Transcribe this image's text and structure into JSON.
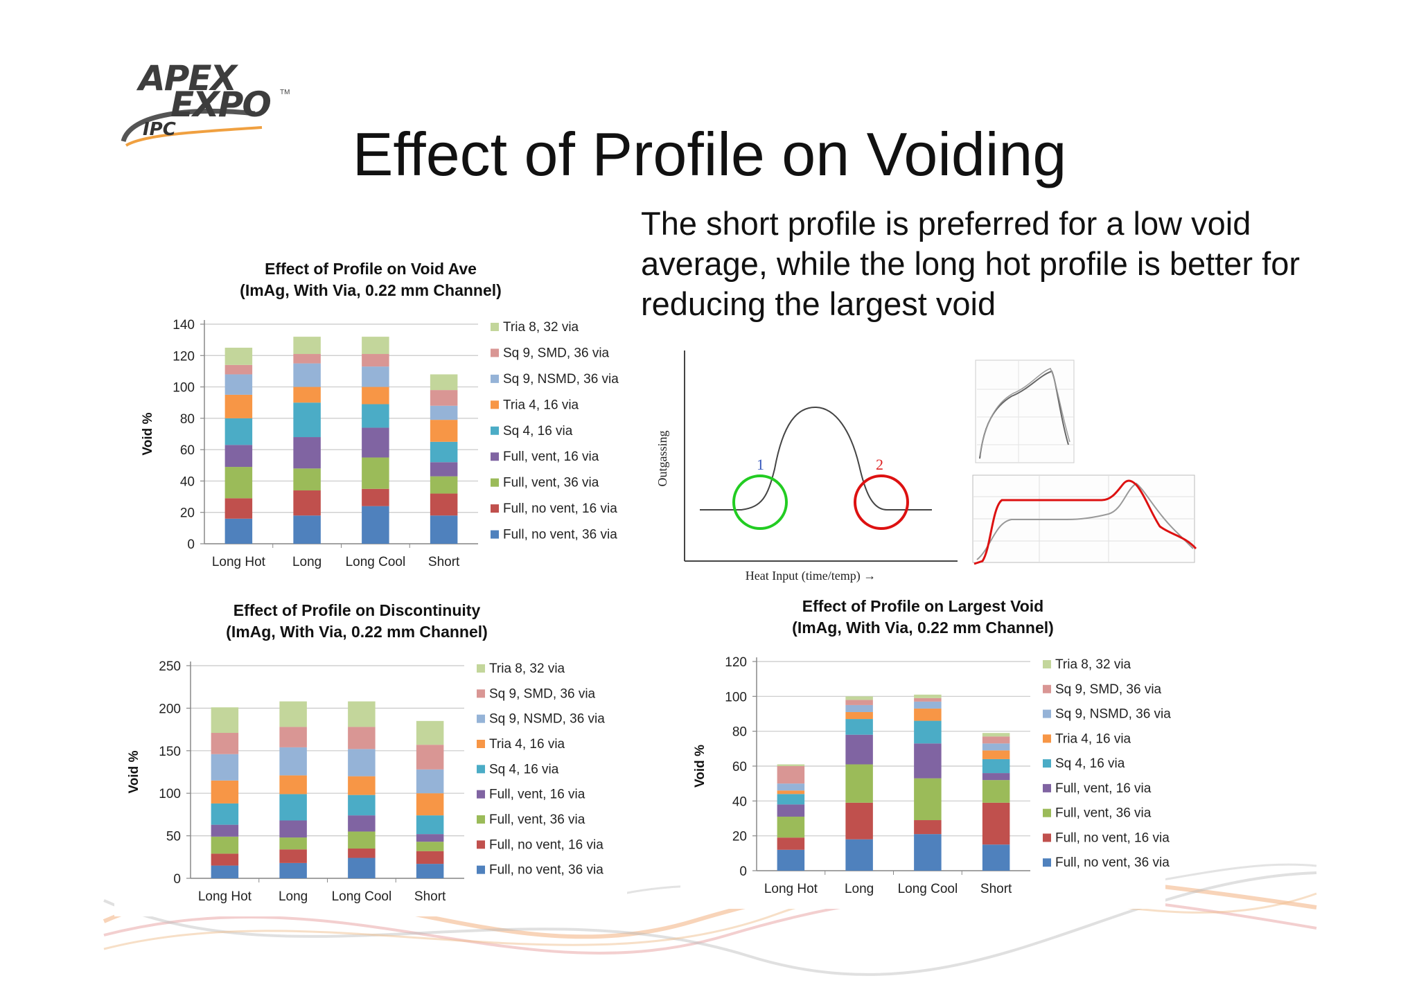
{
  "slide": {
    "title": "Effect of Profile on Voiding",
    "summary": "The short profile is preferred for a low void average, while the long hot profile is better for reducing the largest void"
  },
  "logo": {
    "line1": "APEX",
    "line2": "EXPO",
    "line3": "IPC",
    "tm": "TM"
  },
  "profile_diagram": {
    "ylabel": "Outgassing",
    "xlabel": "Heat Input (time/temp) →",
    "marker1": "1",
    "marker2": "2",
    "marker1_color": "#22cc22",
    "marker2_color": "#dd1111",
    "profile_color": "#dd1111"
  },
  "series_colors": [
    "#4F81BD",
    "#C0504D",
    "#9BBB59",
    "#8064A2",
    "#4BACC6",
    "#F79646",
    "#95B3D7",
    "#D99694",
    "#C3D69B"
  ],
  "chart_data": [
    {
      "type": "bar",
      "stacked": true,
      "title": "Effect of Profile on Void Ave",
      "subtitle": "(ImAg, With Via, 0.22 mm Channel)",
      "xlabel": "",
      "ylabel": "Void %",
      "ylim": [
        0,
        140
      ],
      "yticks": [
        0,
        20,
        40,
        60,
        80,
        100,
        120,
        140
      ],
      "categories": [
        "Long Hot",
        "Long",
        "Long Cool",
        "Short"
      ],
      "grid": true,
      "legend": "right",
      "series": [
        {
          "name": "Full, no vent, 36 via",
          "values": [
            16,
            18,
            24,
            18
          ]
        },
        {
          "name": "Full, no vent, 16 via",
          "values": [
            13,
            16,
            11,
            14
          ]
        },
        {
          "name": "Full, vent, 36 via",
          "values": [
            20,
            14,
            20,
            11
          ]
        },
        {
          "name": "Full, vent, 16 via",
          "values": [
            14,
            20,
            19,
            9
          ]
        },
        {
          "name": "Sq 4, 16 via",
          "values": [
            17,
            22,
            15,
            13
          ]
        },
        {
          "name": "Tria 4, 16 via",
          "values": [
            15,
            10,
            11,
            14
          ]
        },
        {
          "name": "Sq 9, NSMD, 36 via",
          "values": [
            13,
            15,
            13,
            9
          ]
        },
        {
          "name": "Sq 9, SMD, 36 via",
          "values": [
            6,
            6,
            8,
            10
          ]
        },
        {
          "name": "Tria 8, 32 via",
          "values": [
            11,
            11,
            11,
            10
          ]
        }
      ]
    },
    {
      "type": "bar",
      "stacked": true,
      "title": "Effect of Profile on Discontinuity",
      "subtitle": "(ImAg, With Via, 0.22 mm Channel)",
      "xlabel": "",
      "ylabel": "Void %",
      "ylim": [
        0,
        250
      ],
      "yticks": [
        0,
        50,
        100,
        150,
        200,
        250
      ],
      "categories": [
        "Long Hot",
        "Long",
        "Long Cool",
        "Short"
      ],
      "grid": true,
      "legend": "right",
      "series": [
        {
          "name": "Full, no vent, 36 via",
          "values": [
            15,
            18,
            24,
            17
          ]
        },
        {
          "name": "Full, no vent, 16 via",
          "values": [
            14,
            16,
            11,
            15
          ]
        },
        {
          "name": "Full, vent, 36 via",
          "values": [
            20,
            14,
            20,
            11
          ]
        },
        {
          "name": "Full, vent, 16 via",
          "values": [
            14,
            20,
            19,
            9
          ]
        },
        {
          "name": "Sq 4, 16 via",
          "values": [
            25,
            31,
            24,
            22
          ]
        },
        {
          "name": "Tria 4, 16 via",
          "values": [
            27,
            22,
            22,
            26
          ]
        },
        {
          "name": "Sq 9, NSMD, 36 via",
          "values": [
            31,
            33,
            32,
            28
          ]
        },
        {
          "name": "Sq 9, SMD, 36 via",
          "values": [
            25,
            24,
            26,
            29
          ]
        },
        {
          "name": "Tria 8, 32 via",
          "values": [
            30,
            30,
            30,
            28
          ]
        }
      ]
    },
    {
      "type": "bar",
      "stacked": true,
      "title": "Effect of Profile on Largest Void",
      "subtitle": "(ImAg, With Via, 0.22 mm Channel)",
      "xlabel": "",
      "ylabel": "Void %",
      "ylim": [
        0,
        120
      ],
      "yticks": [
        0,
        20,
        40,
        60,
        80,
        100,
        120
      ],
      "categories": [
        "Long Hot",
        "Long",
        "Long Cool",
        "Short"
      ],
      "grid": true,
      "legend": "right",
      "series": [
        {
          "name": "Full, no vent, 36 via",
          "values": [
            12,
            18,
            21,
            15
          ]
        },
        {
          "name": "Full, no vent, 16 via",
          "values": [
            7,
            21,
            8,
            24
          ]
        },
        {
          "name": "Full, vent, 36 via",
          "values": [
            12,
            22,
            24,
            13
          ]
        },
        {
          "name": "Full, vent, 16 via",
          "values": [
            7,
            17,
            20,
            4
          ]
        },
        {
          "name": "Sq 4, 16 via",
          "values": [
            6,
            9,
            13,
            8
          ]
        },
        {
          "name": "Tria 4, 16 via",
          "values": [
            2,
            4,
            7,
            5
          ]
        },
        {
          "name": "Sq 9, NSMD, 36 via",
          "values": [
            4,
            4,
            4,
            4
          ]
        },
        {
          "name": "Sq 9, SMD, 36 via",
          "values": [
            10,
            3,
            2,
            4
          ]
        },
        {
          "name": "Tria 8, 32 via",
          "values": [
            1,
            2,
            2,
            2
          ]
        }
      ]
    }
  ]
}
